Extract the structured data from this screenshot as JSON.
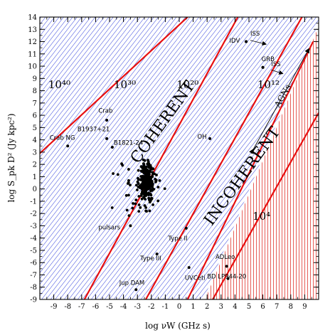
{
  "chart_data": {
    "type": "scatter",
    "title": "",
    "xlabel": "log νW (GHz s)",
    "ylabel": "log S_pk D² (Jy kpc²)",
    "xlim": [
      -10,
      10
    ],
    "ylim": [
      -9,
      14
    ],
    "x_ticks": [
      -9,
      -8,
      -7,
      -6,
      -5,
      -4,
      -3,
      -2,
      -1,
      0,
      1,
      2,
      3,
      4,
      5,
      6,
      7,
      8,
      9
    ],
    "y_ticks": [
      -9,
      -8,
      -7,
      -6,
      -5,
      -4,
      -3,
      -2,
      -1,
      0,
      1,
      2,
      3,
      4,
      5,
      6,
      7,
      8,
      9,
      10,
      11,
      12,
      13,
      14
    ],
    "boundary": {
      "x": [
        1.8,
        10
      ],
      "y": [
        -9,
        13.4
      ]
    },
    "tb_lines": [
      {
        "label": "10⁴⁰",
        "x": [
          -10,
          0.6
        ],
        "y": [
          2.9,
          14
        ],
        "label_x": -8.6,
        "label_y": 8.2
      },
      {
        "label": "10³⁰",
        "x": [
          -6.8,
          4.2
        ],
        "y": [
          -9,
          14
        ],
        "label_x": -3.9,
        "label_y": 8.2
      },
      {
        "label": "10²⁰",
        "x": [
          -2.4,
          8.8
        ],
        "y": [
          -9,
          14
        ],
        "label_x": 0.6,
        "label_y": 8.2
      },
      {
        "label": "10¹²",
        "x": [
          0.6,
          9.6
        ],
        "y": [
          -9,
          12
        ],
        "label_x": 6.4,
        "label_y": 8.2
      },
      {
        "label": "10⁴",
        "x": [
          2.4,
          10
        ],
        "y": [
          -9,
          6.2
        ],
        "label_x": 5.9,
        "label_y": -2.5
      }
    ],
    "regions": [
      {
        "label": "COHERENT",
        "x": -0.9,
        "y": 5.2,
        "angle": -54
      },
      {
        "label": "INCOHERENT",
        "x": 4.8,
        "y": 0.8,
        "angle": -54
      }
    ],
    "agn_label": "AGNs",
    "agn_arrow": {
      "x": [
        5.3,
        9.3
      ],
      "y": [
        3.2,
        11.4
      ]
    },
    "labeled_sources": [
      {
        "label": "Crab",
        "x": -5.2,
        "y": 5.6,
        "label_x": -5.8,
        "label_y": 6.2
      },
      {
        "label": "B1937+21",
        "x": -5.2,
        "y": 4.1,
        "label_x": -7.3,
        "label_y": 4.7
      },
      {
        "label": "Crab NG",
        "x": -8.0,
        "y": 3.5,
        "label_x": -9.3,
        "label_y": 4.0
      },
      {
        "label": "B1821-24",
        "x": -4.8,
        "y": 3.4,
        "label_x": -4.7,
        "label_y": 3.6
      },
      {
        "label": "pulsars",
        "x": -3.5,
        "y": -3.0,
        "label_x": -5.8,
        "label_y": -3.3
      },
      {
        "label": "Type II",
        "x": 0.5,
        "y": -3.2,
        "label_x": -0.8,
        "label_y": -4.2
      },
      {
        "label": "Type III",
        "x": -1.6,
        "y": -5.3,
        "label_x": -2.8,
        "label_y": -5.8
      },
      {
        "label": "UVCeti",
        "x": 0.7,
        "y": -6.4,
        "label_x": 0.4,
        "label_y": -7.4
      },
      {
        "label": "ADLeo",
        "x": 3.4,
        "y": -6.3,
        "label_x": 2.6,
        "label_y": -5.7
      },
      {
        "label": "BD LP944-20",
        "x": 3.5,
        "y": -7.3,
        "label_x": 2.0,
        "label_y": -7.3
      },
      {
        "label": "Jup DAM",
        "x": -3.1,
        "y": -8.2,
        "label_x": -4.3,
        "label_y": -7.8
      },
      {
        "label": "OH",
        "x": 2.2,
        "y": 4.1,
        "label_x": 1.3,
        "label_y": 4.1
      },
      {
        "label": "IDV",
        "x": 4.8,
        "y": 12.0,
        "label_x": 3.6,
        "label_y": 11.9
      },
      {
        "label": "ISS",
        "x": 4.8,
        "y": 12.0,
        "label_x": 5.1,
        "label_y": 12.5
      },
      {
        "label": "GRB",
        "x": 6.0,
        "y": 9.9,
        "label_x": 5.9,
        "label_y": 10.4
      },
      {
        "label": "ISS",
        "x": 6.0,
        "y": 9.9,
        "label_x": 6.6,
        "label_y": 10.0
      }
    ],
    "scatter_clusters": [
      {
        "name": "pulsars-core",
        "cx": -2.3,
        "cy": 0.6,
        "sx": 0.28,
        "sy": 0.75,
        "n": 240
      },
      {
        "name": "pulsars-spread",
        "cx": -2.8,
        "cy": -0.2,
        "sx": 0.8,
        "sy": 1.2,
        "n": 45
      }
    ]
  }
}
